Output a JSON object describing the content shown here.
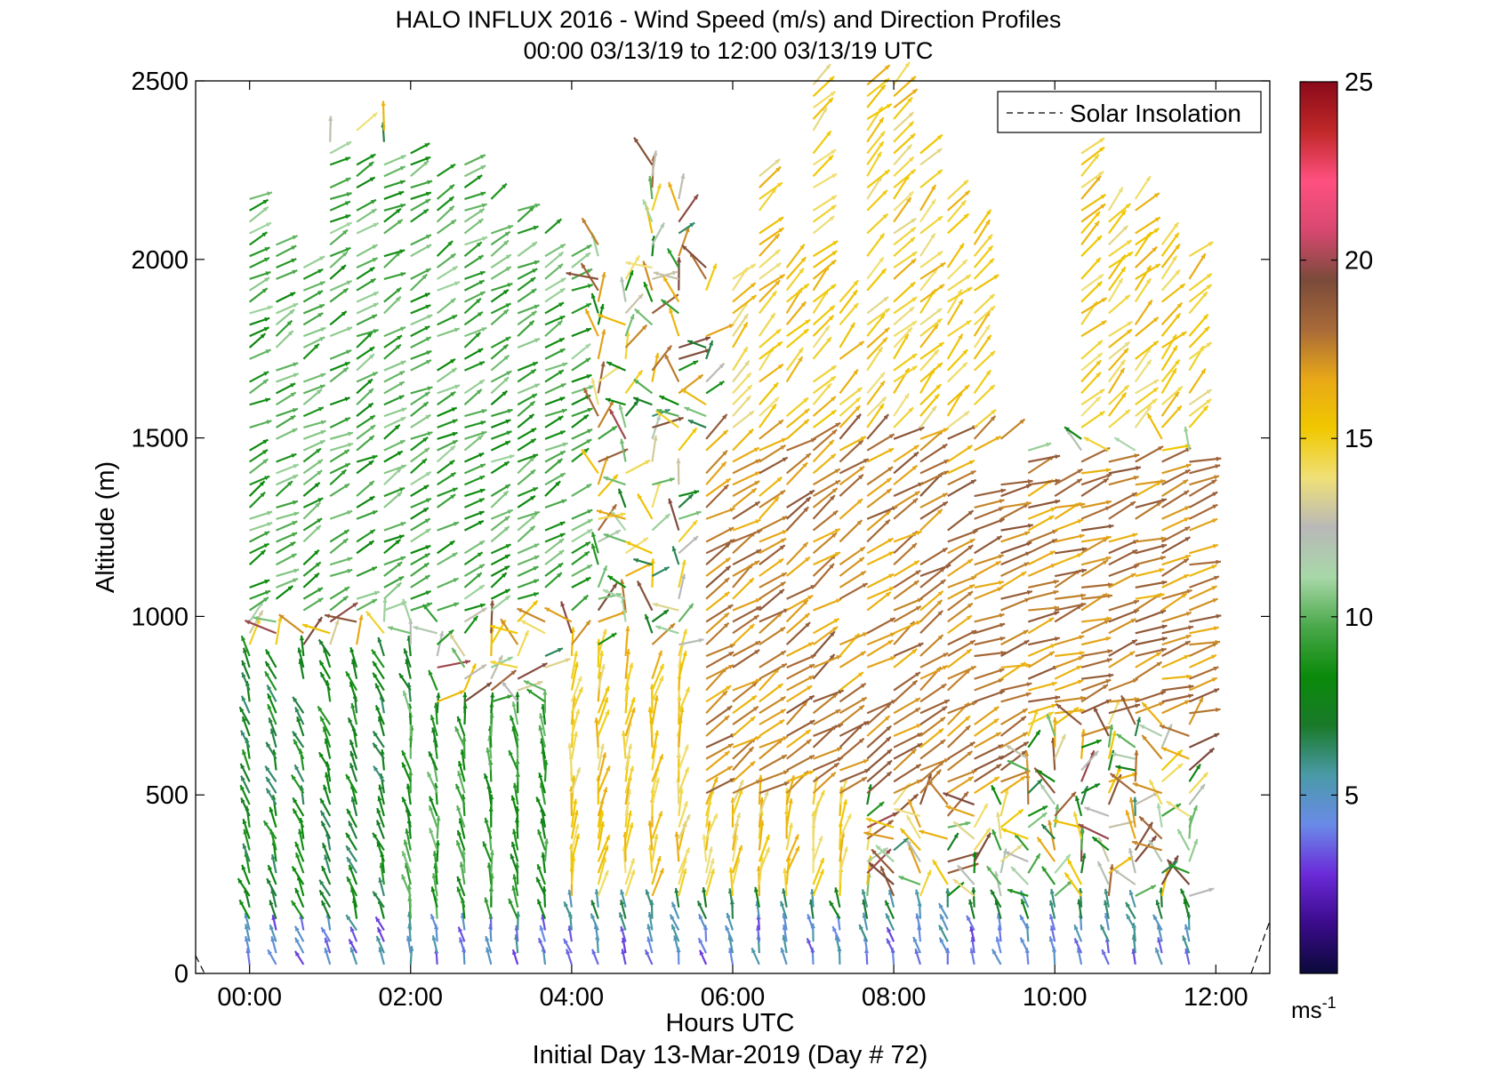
{
  "chart_data": {
    "type": "quiver",
    "title": "HALO INFLUX 2016 - Wind Speed (m/s) and Direction Profiles",
    "subtitle": "00:00 03/13/19 to 12:00 03/13/19  UTC",
    "xlabel": "Hours UTC",
    "xlabel2": "Initial Day 13-Mar-2019 (Day # 72)",
    "ylabel": "Altitude (m)",
    "xlim_hours": [
      -0.67,
      12.67
    ],
    "ylim": [
      0,
      2500
    ],
    "x_ticks": [
      0,
      2,
      4,
      6,
      8,
      10,
      12
    ],
    "x_tick_labels": [
      "00:00",
      "02:00",
      "04:00",
      "06:00",
      "08:00",
      "10:00",
      "12:00"
    ],
    "y_ticks": [
      0,
      500,
      1000,
      1500,
      2000,
      2500
    ],
    "y_tick_labels": [
      "0",
      "500",
      "1000",
      "1500",
      "2000",
      "2500"
    ],
    "legend": {
      "entries": [
        "Solar Insolation"
      ],
      "position": "top-right",
      "style": "dashed"
    },
    "colorbar": {
      "min": 0,
      "max": 25,
      "ticks": [
        5,
        10,
        15,
        20,
        25
      ],
      "tick_labels": [
        "5",
        "10",
        "15",
        "20",
        "25"
      ],
      "unit_base": "ms",
      "unit_exp": "-1",
      "colors": [
        "#0a0a3a",
        "#3a0a8a",
        "#6a2ad8",
        "#6a8ae8",
        "#4a9aa8",
        "#1a7a2a",
        "#0a8a0a",
        "#4aa84a",
        "#a8d8a8",
        "#b8b8b8",
        "#f0e078",
        "#f0c800",
        "#e8a818",
        "#a86a38",
        "#7a4a3a",
        "#d84870",
        "#ff5080",
        "#c02828",
        "#8a0a1a"
      ]
    },
    "profile_times_hours": [
      0.0,
      0.33,
      0.67,
      1.0,
      1.33,
      1.67,
      2.0,
      2.33,
      2.67,
      3.0,
      3.33,
      3.67,
      4.0,
      4.33,
      4.67,
      5.0,
      5.33,
      5.67,
      6.0,
      6.33,
      6.67,
      7.0,
      7.33,
      7.67,
      8.0,
      8.33,
      8.67,
      9.0,
      9.33,
      9.67,
      10.0,
      10.33,
      10.67,
      11.0,
      11.33,
      11.67
    ],
    "profile_max_altitude_m": [
      2200,
      2050,
      2000,
      2330,
      2370,
      2370,
      2310,
      2250,
      2280,
      2200,
      2140,
      2100,
      2040,
      2050,
      1950,
      2270,
      2200,
      2000,
      1960,
      2240,
      2000,
      2500,
      1900,
      2500,
      2500,
      2300,
      2180,
      2100,
      1500,
      1480,
      1400,
      2350,
      2180,
      2170,
      2050,
      2040
    ],
    "regimes": [
      {
        "hours": [
          0.0,
          2.0
        ],
        "alt_m": [
          0,
          900
        ],
        "speed_ms": 7.5,
        "direction_deg_from": 160
      },
      {
        "hours": [
          2.0,
          4.5
        ],
        "alt_m": [
          0,
          750
        ],
        "speed_ms": 9,
        "direction_deg_from": 170
      },
      {
        "hours": [
          4.0,
          12.0
        ],
        "alt_m": [
          0,
          200
        ],
        "speed_ms": 6.5,
        "direction_deg_from": 165
      },
      {
        "hours": [
          4.0,
          7.5
        ],
        "alt_m": [
          200,
          900
        ],
        "speed_ms": 15,
        "direction_deg_from": 190
      },
      {
        "hours": [
          5.5,
          9.5
        ],
        "alt_m": [
          500,
          1500
        ],
        "speed_ms": 17.5,
        "direction_deg_from": 235
      },
      {
        "hours": [
          9.0,
          12.0
        ],
        "alt_m": [
          700,
          1450
        ],
        "speed_ms": 17.5,
        "direction_deg_from": 250
      },
      {
        "hours": [
          0.0,
          4.0
        ],
        "alt_m": [
          1000,
          2300
        ],
        "speed_ms": 9.5,
        "direction_deg_from": 240
      },
      {
        "hours": [
          6.0,
          12.0
        ],
        "alt_m": [
          1500,
          2500
        ],
        "speed_ms": 15,
        "direction_deg_from": 225
      }
    ],
    "grid": false
  }
}
